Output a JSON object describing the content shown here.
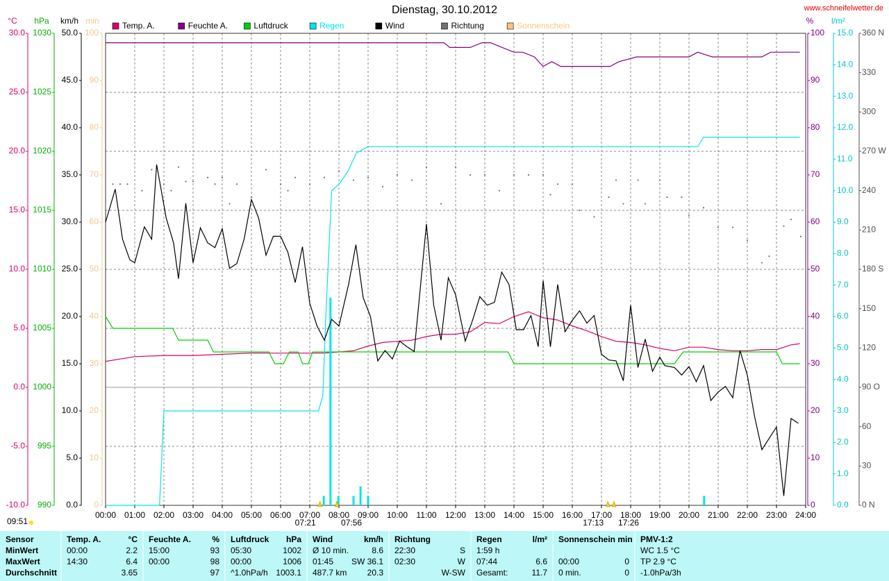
{
  "chart_data": {
    "type": "line",
    "title": "Dienstag, 30.10.2012",
    "source": "www.schneifelwetter.de",
    "grid": true,
    "xlim": [
      0,
      24
    ],
    "xticks": [
      {
        "value": 0,
        "label": "00:00"
      },
      {
        "value": 1,
        "label": "01:00"
      },
      {
        "value": 2,
        "label": "02:00"
      },
      {
        "value": 3,
        "label": "03:00"
      },
      {
        "value": 4,
        "label": "04:00"
      },
      {
        "value": 5,
        "label": "05:00"
      },
      {
        "value": 6,
        "label": "06:00"
      },
      {
        "value": 7,
        "label": "07:00"
      },
      {
        "value": 8,
        "label": "08:00"
      },
      {
        "value": 9,
        "label": "09:00"
      },
      {
        "value": 10,
        "label": "10:00"
      },
      {
        "value": 11,
        "label": "11:00"
      },
      {
        "value": 12,
        "label": "12:00"
      },
      {
        "value": 13,
        "label": "13:00"
      },
      {
        "value": 14,
        "label": "14:00"
      },
      {
        "value": 15,
        "label": "15:00"
      },
      {
        "value": 16,
        "label": "16:00"
      },
      {
        "value": 17,
        "label": "17:00"
      },
      {
        "value": 18,
        "label": "18:00"
      },
      {
        "value": 19,
        "label": "19:00"
      },
      {
        "value": 20,
        "label": "20:00"
      },
      {
        "value": 21,
        "label": "21:00"
      },
      {
        "value": 22,
        "label": "22:00"
      },
      {
        "value": 23,
        "label": "23:00"
      },
      {
        "value": 24,
        "label": "24:00"
      }
    ],
    "axes": {
      "temp": {
        "unit": "°C",
        "color": "#d6006b",
        "lim": [
          -10,
          30
        ],
        "ticks": [
          {
            "value": 30,
            "label": "30.0"
          },
          {
            "value": 25,
            "label": "25.0"
          },
          {
            "value": 20,
            "label": "20.0"
          },
          {
            "value": 15,
            "label": "15.0"
          },
          {
            "value": 10,
            "label": "10.0"
          },
          {
            "value": 5,
            "label": "5.0"
          },
          {
            "value": 0,
            "label": "0.0"
          },
          {
            "value": -5,
            "label": "-5.0"
          },
          {
            "value": -10,
            "label": "-10.0"
          }
        ]
      },
      "hpa": {
        "unit": "hPa",
        "color": "#00b000",
        "lim": [
          990,
          1030
        ],
        "ticks": [
          1030,
          1025,
          1020,
          1015,
          1010,
          1005,
          1000,
          995,
          990
        ]
      },
      "kmh": {
        "unit": "km/h",
        "color": "#000000",
        "lim": [
          0,
          50
        ],
        "ticks": [
          {
            "value": 50,
            "label": "50.0"
          },
          {
            "value": 45,
            "label": "45.0"
          },
          {
            "value": 40,
            "label": "40.0"
          },
          {
            "value": 35,
            "label": "35.0"
          },
          {
            "value": 30,
            "label": "30.0"
          },
          {
            "value": 25,
            "label": "25.0"
          },
          {
            "value": 20,
            "label": "20.0"
          },
          {
            "value": 15,
            "label": "15.0"
          },
          {
            "value": 10,
            "label": "10.0"
          },
          {
            "value": 5,
            "label": "5.0"
          },
          {
            "value": 0,
            "label": "0.0"
          }
        ]
      },
      "min": {
        "unit": "min",
        "color": "#f0c890",
        "lim": [
          0,
          100
        ],
        "ticks": [
          100,
          90,
          80,
          70,
          60,
          50,
          40,
          30,
          20,
          10,
          0
        ]
      },
      "pct": {
        "unit": "%",
        "color": "#800080",
        "lim": [
          0,
          100
        ],
        "ticks": [
          100,
          90,
          80,
          70,
          60,
          50,
          40,
          30,
          20,
          10,
          0
        ]
      },
      "rain": {
        "unit": "l/m²",
        "color": "#00c8c8",
        "lim": [
          0,
          15
        ],
        "ticks": [
          {
            "value": 15,
            "label": "15.0"
          },
          {
            "value": 14,
            "label": "14.0"
          },
          {
            "value": 13,
            "label": "13.0"
          },
          {
            "value": 12,
            "label": "12.0"
          },
          {
            "value": 11,
            "label": "11.0"
          },
          {
            "value": 10,
            "label": "10.0"
          },
          {
            "value": 9,
            "label": "9.0"
          },
          {
            "value": 8,
            "label": "8.0"
          },
          {
            "value": 7,
            "label": "7.0"
          },
          {
            "value": 6,
            "label": "6.0"
          },
          {
            "value": 5,
            "label": "5.0"
          },
          {
            "value": 4,
            "label": "4.0"
          },
          {
            "value": 3,
            "label": "3.0"
          },
          {
            "value": 2,
            "label": "2.0"
          },
          {
            "value": 1,
            "label": "1.0"
          },
          {
            "value": 0,
            "label": "0.0"
          }
        ]
      },
      "dir": {
        "color": "#505050",
        "lim": [
          0,
          360
        ],
        "ticks": [
          {
            "value": 360,
            "label": "360 N"
          },
          330,
          300,
          {
            "value": 270,
            "label": "270 W"
          },
          240,
          210,
          {
            "value": 180,
            "label": "180 S"
          },
          150,
          120,
          {
            "value": 90,
            "label": "90 O"
          },
          60,
          30,
          {
            "value": 0,
            "label": "0 N"
          }
        ]
      }
    },
    "series": [
      {
        "name": "Temp. A.",
        "color": "#d6006b",
        "axis": "temp",
        "x": [
          0,
          0.5,
          1,
          2,
          3,
          4,
          5,
          6,
          7,
          7.5,
          8,
          8.5,
          9,
          9.5,
          10,
          10.5,
          11,
          11.5,
          12,
          12.5,
          13,
          13.5,
          14,
          14.5,
          15,
          15.5,
          16,
          16.5,
          17,
          17.5,
          18,
          18.5,
          19,
          19.5,
          20,
          20.5,
          21,
          21.5,
          22,
          22.5,
          23,
          23.5,
          23.8
        ],
        "values": [
          2.2,
          2.4,
          2.6,
          2.7,
          2.7,
          2.8,
          2.9,
          2.9,
          2.9,
          2.9,
          3.0,
          3.1,
          3.5,
          3.8,
          3.9,
          4.0,
          4.3,
          4.5,
          4.5,
          4.7,
          5.5,
          5.4,
          6.0,
          6.4,
          5.9,
          5.7,
          5.2,
          4.8,
          4.3,
          3.9,
          3.8,
          3.6,
          3.3,
          3.1,
          3.4,
          3.4,
          3.2,
          3.1,
          3.1,
          3.2,
          3.2,
          3.6,
          3.7
        ]
      },
      {
        "name": "Feuchte A.",
        "color": "#800080",
        "axis": "pct",
        "x": [
          0,
          11.6,
          11.8,
          12.5,
          12.9,
          13.2,
          13.6,
          14.0,
          14.3,
          14.7,
          15.0,
          15.3,
          15.6,
          17.3,
          17.6,
          18.2,
          20.0,
          20.3,
          20.8,
          22.5,
          22.8,
          23.8
        ],
        "values": [
          98,
          98,
          97,
          97,
          98,
          98,
          97,
          96,
          96,
          95,
          93,
          94,
          93,
          93,
          94,
          95,
          95,
          96,
          95,
          95,
          96,
          96
        ]
      },
      {
        "name": "Luftdruck",
        "color": "#00d000",
        "axis": "hpa",
        "x": [
          0,
          0.25,
          2.3,
          2.5,
          3.5,
          3.7,
          5.6,
          5.8,
          6.1,
          6.3,
          6.6,
          6.75,
          6.95,
          7.1,
          13.8,
          14.0,
          19.5,
          19.8,
          23.0,
          23.2,
          23.8
        ],
        "values": [
          1006,
          1005,
          1005,
          1004,
          1004,
          1003,
          1003,
          1002,
          1002,
          1003,
          1003,
          1002,
          1002,
          1003,
          1003,
          1002,
          1002,
          1003,
          1003,
          1002,
          1002
        ]
      },
      {
        "name": "Regen",
        "color": "#00e5e5",
        "axis": "rain",
        "x": [
          0,
          1.85,
          2.0,
          7.3,
          7.45,
          7.55,
          7.75,
          8.0,
          8.3,
          8.6,
          9.0,
          20.3,
          20.5,
          23.8
        ],
        "values": [
          0,
          0,
          3.0,
          3.0,
          3.5,
          6.0,
          10.0,
          10.2,
          10.6,
          11.2,
          11.4,
          11.4,
          11.7,
          11.7
        ],
        "bars": {
          "x": [
            7.48,
            7.71,
            7.98,
            8.5,
            8.74,
            9.0,
            20.52
          ],
          "values": [
            0.3,
            6.6,
            0.3,
            0.3,
            0.6,
            0.3,
            0.3
          ]
        }
      },
      {
        "name": "Wind",
        "color": "#000000",
        "axis": "kmh",
        "x": [
          0,
          0.33,
          0.58,
          0.83,
          1,
          1.33,
          1.58,
          1.75,
          2.08,
          2.33,
          2.5,
          2.75,
          3,
          3.25,
          3.5,
          3.75,
          4,
          4.25,
          4.5,
          4.75,
          5,
          5.25,
          5.5,
          5.75,
          6,
          6.25,
          6.5,
          6.75,
          7,
          7.25,
          7.5,
          7.75,
          8,
          8.33,
          8.58,
          8.83,
          9.08,
          9.33,
          9.58,
          9.83,
          10.08,
          10.33,
          10.58,
          11,
          11.25,
          11.5,
          11.75,
          12,
          12.33,
          12.58,
          12.83,
          13.08,
          13.33,
          13.58,
          13.83,
          14.08,
          14.33,
          14.58,
          14.83,
          15,
          15.25,
          15.5,
          15.75,
          16,
          16.25,
          16.5,
          16.75,
          17,
          17.25,
          17.5,
          17.75,
          18,
          18.25,
          18.5,
          18.75,
          19,
          19.17,
          19.5,
          19.75,
          20,
          20.25,
          20.5,
          20.75,
          21,
          21.25,
          21.5,
          21.75,
          22,
          22.25,
          22.5,
          22.75,
          23,
          23.25,
          23.5,
          23.75
        ],
        "values": [
          30,
          33.5,
          28.2,
          26,
          25.7,
          29.5,
          28.2,
          36.1,
          30.4,
          27.8,
          24,
          32,
          25.7,
          29.4,
          27.8,
          27.3,
          29.3,
          25.1,
          25.6,
          28.2,
          32.4,
          30.4,
          26.5,
          28.5,
          28.5,
          26.8,
          23.6,
          27.4,
          21.4,
          19,
          17.5,
          19.7,
          19,
          23.4,
          27.6,
          22,
          20,
          15.3,
          16.4,
          15.5,
          17.4,
          16.8,
          16.3,
          29.8,
          21.2,
          17.5,
          24.1,
          22.3,
          17.4,
          19.6,
          22.1,
          21.2,
          21.5,
          24.7,
          23.4,
          18.6,
          18.6,
          20.1,
          16.8,
          23.8,
          16.8,
          23.4,
          18.4,
          19.6,
          20.6,
          19.3,
          20.1,
          16,
          15.4,
          15.3,
          13.2,
          21.2,
          14.6,
          17.6,
          14.2,
          15.7,
          14.8,
          14.6,
          13.8,
          14.7,
          13.1,
          14.8,
          11.1,
          12,
          12.6,
          11.4,
          16.4,
          13.8,
          9.4,
          5.9,
          7.1,
          8.3,
          1,
          9.2,
          8.7
        ]
      },
      {
        "name": "Richtung",
        "color": "#707070",
        "axis": "dir",
        "kind": "dots",
        "x": [
          0.25,
          0.5,
          0.75,
          1.25,
          1.58,
          2,
          2.25,
          2.5,
          2.75,
          3,
          3.5,
          3.75,
          4,
          4.25,
          4.5,
          5,
          5.5,
          6,
          6.25,
          6.5,
          7,
          7.5,
          8,
          8.5,
          9,
          9.5,
          10,
          10.5,
          11,
          11.5,
          12,
          12.5,
          13,
          13.5,
          14,
          14.5,
          15,
          15.25,
          15.5,
          16,
          16.25,
          16.75,
          17.25,
          17.5,
          17.75,
          18.25,
          18.5,
          19,
          19.25,
          19.75,
          20,
          20.5,
          21,
          21.5,
          22,
          22.5,
          22.75,
          23.25,
          23.5,
          23.83
        ],
        "values": [
          245,
          245,
          245,
          240,
          256,
          245,
          240,
          258,
          247,
          247,
          250,
          245,
          250,
          230,
          245,
          235,
          256,
          245,
          240,
          250,
          245,
          250,
          255,
          248,
          250,
          243,
          252,
          248,
          258,
          230,
          258,
          252,
          252,
          240,
          252,
          252,
          252,
          237,
          245,
          245,
          225,
          220,
          235,
          248,
          230,
          248,
          230,
          248,
          235,
          235,
          221,
          227,
          212,
          212,
          202,
          185,
          190,
          213,
          218,
          205
        ]
      },
      {
        "name": "Sonnenschein",
        "color": "#f5c882",
        "axis": "min",
        "x": [],
        "values": []
      }
    ],
    "sun_markers": [
      {
        "label": "07:21",
        "x": 7.35
      },
      {
        "label": "07:56",
        "x": 7.93
      },
      {
        "label": "17:13",
        "x": 17.22
      },
      {
        "label": "17:26",
        "x": 17.43
      }
    ],
    "corner_note": "09:51"
  },
  "table": {
    "columns": [
      {
        "left": "Sensor"
      },
      {
        "left": "Temp. A.",
        "right": "°C"
      },
      {
        "left": "Feuchte A.",
        "right": "%"
      },
      {
        "left": "Luftdruck",
        "right": "hPa"
      },
      {
        "left": "Wind",
        "right": "km/h"
      },
      {
        "left": "Richtung"
      },
      {
        "left": "Regen",
        "right": "l/m²"
      },
      {
        "left": "Sonnenschein min"
      },
      {
        "left": "PMV-1:2"
      }
    ],
    "rows": [
      [
        {
          "left": "MinWert"
        },
        {
          "left": "00:00",
          "right": "2.2"
        },
        {
          "left": "15:00",
          "right": "93"
        },
        {
          "left": "05:30",
          "right": "1002"
        },
        {
          "left": "Ø 10 min.",
          "right": "8.6"
        },
        {
          "left": "22:30",
          "right": "S"
        },
        {
          "left": "1:59 h"
        },
        null,
        {
          "left": "WC 1.5 °C"
        }
      ],
      [
        {
          "left": "MaxWert"
        },
        {
          "left": "14:30",
          "right": "6.4"
        },
        {
          "left": "00:00",
          "right": "98"
        },
        {
          "left": "00:00",
          "right": "1006"
        },
        {
          "left": "01:45",
          "right": "SW 36.1"
        },
        {
          "left": "02:30",
          "right": "W"
        },
        {
          "left": "07:44",
          "right": "6.6"
        },
        {
          "left": "00:00",
          "right": "0"
        },
        {
          "left": "TP 2.9 °C"
        }
      ],
      [
        {
          "left": "Durchschnitt"
        },
        {
          "right": "3.65"
        },
        {
          "right": "97"
        },
        {
          "left": "^1.0hPa/h",
          "right": "1003.1"
        },
        {
          "left": "487.7 km",
          "right": "20.3"
        },
        {
          "right": "W-SW"
        },
        {
          "left": "Gesamt:",
          "right": "11.7"
        },
        {
          "left": "0 min.",
          "right": "0"
        },
        {
          "left": "-1.0hPa/3h"
        }
      ]
    ]
  }
}
